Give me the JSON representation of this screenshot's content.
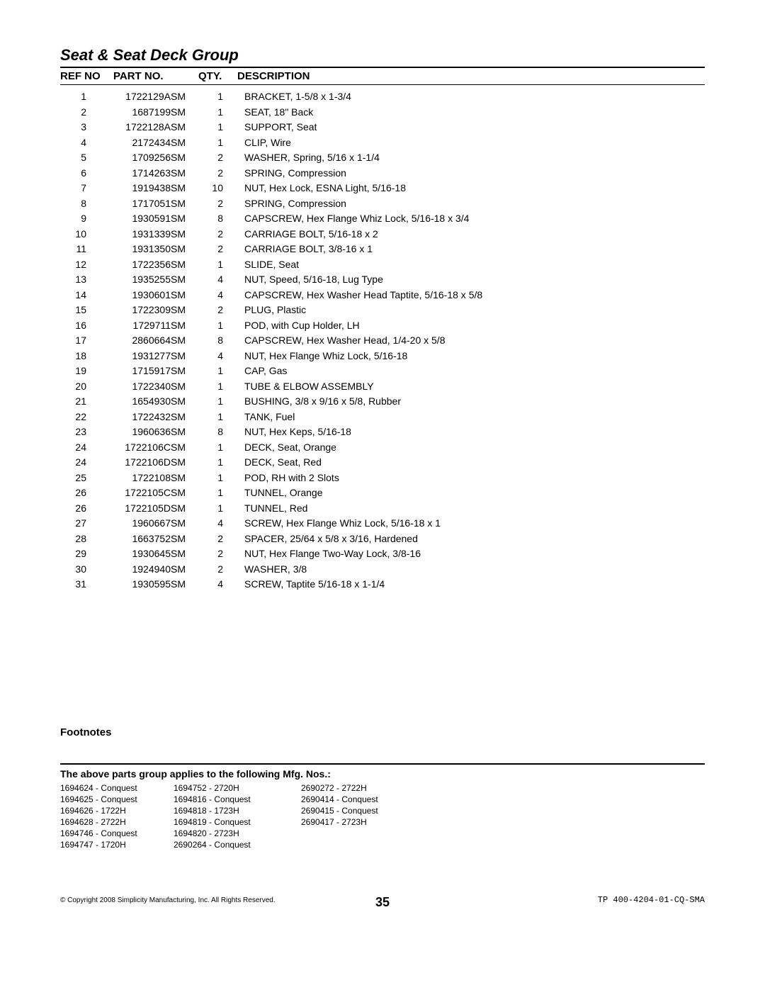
{
  "title": "Seat & Seat Deck Group",
  "tableHeaders": {
    "ref": "REF NO",
    "part": "PART NO.",
    "qty": "QTY.",
    "desc": "DESCRIPTION"
  },
  "parts": [
    {
      "ref": "1",
      "part": "1722129ASM",
      "qty": "1",
      "desc": "BRACKET, 1-5/8 x 1-3/4"
    },
    {
      "ref": "2",
      "part": "1687199SM",
      "qty": "1",
      "desc": "SEAT, 18\" Back"
    },
    {
      "ref": "3",
      "part": "1722128ASM",
      "qty": "1",
      "desc": "SUPPORT, Seat"
    },
    {
      "ref": "4",
      "part": "2172434SM",
      "qty": "1",
      "desc": "CLIP, Wire"
    },
    {
      "ref": "5",
      "part": "1709256SM",
      "qty": "2",
      "desc": "WASHER, Spring, 5/16 x 1-1/4"
    },
    {
      "ref": "6",
      "part": "1714263SM",
      "qty": "2",
      "desc": "SPRING, Compression"
    },
    {
      "ref": "7",
      "part": "1919438SM",
      "qty": "10",
      "desc": "NUT, Hex Lock, ESNA Light, 5/16-18"
    },
    {
      "ref": "8",
      "part": "1717051SM",
      "qty": "2",
      "desc": "SPRING, Compression"
    },
    {
      "ref": "9",
      "part": "1930591SM",
      "qty": "8",
      "desc": "CAPSCREW, Hex Flange Whiz Lock, 5/16-18 x 3/4"
    },
    {
      "ref": "10",
      "part": "1931339SM",
      "qty": "2",
      "desc": "CARRIAGE BOLT, 5/16-18 x 2"
    },
    {
      "ref": "11",
      "part": "1931350SM",
      "qty": "2",
      "desc": "CARRIAGE BOLT, 3/8-16 x 1"
    },
    {
      "ref": "12",
      "part": "1722356SM",
      "qty": "1",
      "desc": "SLIDE, Seat"
    },
    {
      "ref": "13",
      "part": "1935255SM",
      "qty": "4",
      "desc": "NUT, Speed, 5/16-18, Lug Type"
    },
    {
      "ref": "14",
      "part": "1930601SM",
      "qty": "4",
      "desc": "CAPSCREW, Hex Washer Head Taptite, 5/16-18 x 5/8"
    },
    {
      "ref": "15",
      "part": "1722309SM",
      "qty": "2",
      "desc": "PLUG, Plastic"
    },
    {
      "ref": "16",
      "part": "1729711SM",
      "qty": "1",
      "desc": "POD, with Cup Holder, LH"
    },
    {
      "ref": "17",
      "part": "2860664SM",
      "qty": "8",
      "desc": "CAPSCREW, Hex Washer Head, 1/4-20 x 5/8"
    },
    {
      "ref": "18",
      "part": "1931277SM",
      "qty": "4",
      "desc": "NUT, Hex Flange Whiz Lock, 5/16-18"
    },
    {
      "ref": "19",
      "part": "1715917SM",
      "qty": "1",
      "desc": "CAP, Gas"
    },
    {
      "ref": "20",
      "part": "1722340SM",
      "qty": "1",
      "desc": "TUBE & ELBOW ASSEMBLY"
    },
    {
      "ref": "21",
      "part": "1654930SM",
      "qty": "1",
      "desc": "BUSHING, 3/8 x 9/16 x 5/8, Rubber"
    },
    {
      "ref": "22",
      "part": "1722432SM",
      "qty": "1",
      "desc": "TANK, Fuel"
    },
    {
      "ref": "23",
      "part": "1960636SM",
      "qty": "8",
      "desc": "NUT, Hex Keps, 5/16-18"
    },
    {
      "ref": "24",
      "part": "1722106CSM",
      "qty": "1",
      "desc": "DECK, Seat, Orange"
    },
    {
      "ref": "24",
      "part": "1722106DSM",
      "qty": "1",
      "desc": "DECK, Seat, Red"
    },
    {
      "ref": "25",
      "part": "1722108SM",
      "qty": "1",
      "desc": "POD, RH with 2 Slots"
    },
    {
      "ref": "26",
      "part": "1722105CSM",
      "qty": "1",
      "desc": "TUNNEL, Orange"
    },
    {
      "ref": "26",
      "part": "1722105DSM",
      "qty": "1",
      "desc": "TUNNEL, Red"
    },
    {
      "ref": "27",
      "part": "1960667SM",
      "qty": "4",
      "desc": "SCREW, Hex Flange Whiz Lock, 5/16-18 x 1"
    },
    {
      "ref": "28",
      "part": "1663752SM",
      "qty": "2",
      "desc": "SPACER, 25/64 x 5/8 x 3/16, Hardened"
    },
    {
      "ref": "29",
      "part": "1930645SM",
      "qty": "2",
      "desc": "NUT, Hex Flange Two-Way Lock, 3/8-16"
    },
    {
      "ref": "30",
      "part": "1924940SM",
      "qty": "2",
      "desc": "WASHER, 3/8"
    },
    {
      "ref": "31",
      "part": "1930595SM",
      "qty": "4",
      "desc": "SCREW, Taptite 5/16-18 x 1-1/4"
    }
  ],
  "footnotesLabel": "Footnotes",
  "mfgTitle": "The above parts group applies to the following Mfg. Nos.:",
  "mfgCols": [
    [
      "1694624 - Conquest",
      "1694625 - Conquest",
      "1694626 - 1722H",
      "1694628 - 2722H",
      "1694746 - Conquest",
      "1694747 - 1720H"
    ],
    [
      "1694752 - 2720H",
      "1694816 - Conquest",
      "1694818 - 1723H",
      "1694819 - Conquest",
      "1694820 - 2723H",
      "2690264 - Conquest"
    ],
    [
      "2690272 - 2722H",
      "2690414 - Conquest",
      "2690415 - Conquest",
      "2690417 - 2723H"
    ]
  ],
  "footer": {
    "copyright": "© Copyright 2008 Simplicity Manufacturing, Inc. All Rights Reserved.",
    "page": "35",
    "docId": "TP 400-4204-01-CQ-SMA"
  }
}
